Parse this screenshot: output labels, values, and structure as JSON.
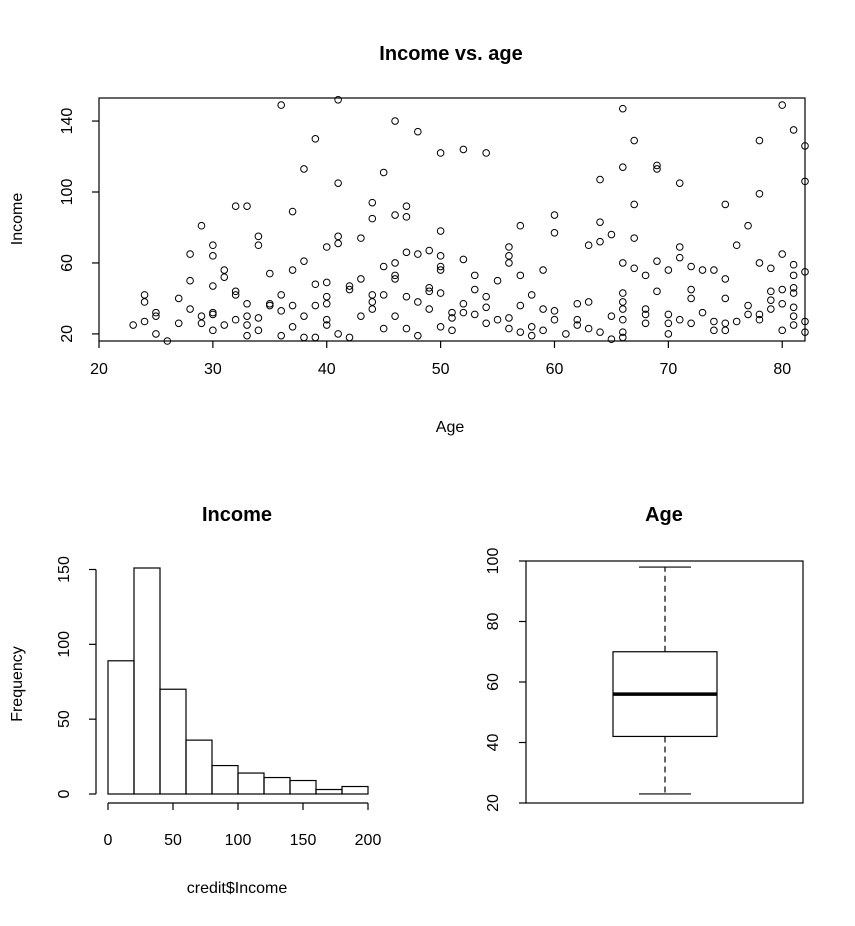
{
  "chart_data": [
    {
      "type": "scatter",
      "title": "Income vs. age",
      "xlabel": "Age",
      "ylabel": "Income",
      "xlim": [
        20,
        82
      ],
      "ylim": [
        16,
        153
      ],
      "xticks": [
        20,
        30,
        40,
        50,
        60,
        70,
        80
      ],
      "yticks": [
        20,
        60,
        100,
        140
      ],
      "marker": "open-circle",
      "grid": false,
      "points": [
        [
          23,
          25
        ],
        [
          24,
          42
        ],
        [
          24,
          38
        ],
        [
          24,
          27
        ],
        [
          25,
          32
        ],
        [
          25,
          30
        ],
        [
          25,
          20
        ],
        [
          26,
          16
        ],
        [
          27,
          40
        ],
        [
          27,
          26
        ],
        [
          28,
          65
        ],
        [
          28,
          50
        ],
        [
          28,
          34
        ],
        [
          29,
          81
        ],
        [
          29,
          30
        ],
        [
          29,
          26
        ],
        [
          30,
          70
        ],
        [
          30,
          64
        ],
        [
          30,
          47
        ],
        [
          30,
          32
        ],
        [
          30,
          31
        ],
        [
          30,
          22
        ],
        [
          31,
          56
        ],
        [
          31,
          52
        ],
        [
          31,
          25
        ],
        [
          32,
          92
        ],
        [
          32,
          44
        ],
        [
          32,
          42
        ],
        [
          32,
          28
        ],
        [
          33,
          92
        ],
        [
          33,
          37
        ],
        [
          33,
          30
        ],
        [
          33,
          25
        ],
        [
          33,
          19
        ],
        [
          34,
          75
        ],
        [
          34,
          70
        ],
        [
          34,
          29
        ],
        [
          34,
          22
        ],
        [
          35,
          54
        ],
        [
          35,
          37
        ],
        [
          35,
          36
        ],
        [
          36,
          149
        ],
        [
          36,
          42
        ],
        [
          36,
          33
        ],
        [
          36,
          19
        ],
        [
          37,
          89
        ],
        [
          37,
          56
        ],
        [
          37,
          36
        ],
        [
          37,
          24
        ],
        [
          38,
          113
        ],
        [
          38,
          61
        ],
        [
          38,
          30
        ],
        [
          38,
          18
        ],
        [
          39,
          130
        ],
        [
          39,
          48
        ],
        [
          39,
          36
        ],
        [
          39,
          18
        ],
        [
          40,
          69
        ],
        [
          40,
          49
        ],
        [
          40,
          41
        ],
        [
          40,
          37
        ],
        [
          40,
          28
        ],
        [
          40,
          25
        ],
        [
          41,
          152
        ],
        [
          41,
          105
        ],
        [
          41,
          75
        ],
        [
          41,
          71
        ],
        [
          41,
          20
        ],
        [
          42,
          47
        ],
        [
          42,
          45
        ],
        [
          42,
          18
        ],
        [
          43,
          74
        ],
        [
          43,
          51
        ],
        [
          43,
          30
        ],
        [
          44,
          94
        ],
        [
          44,
          85
        ],
        [
          44,
          42
        ],
        [
          44,
          38
        ],
        [
          44,
          34
        ],
        [
          45,
          111
        ],
        [
          45,
          58
        ],
        [
          45,
          42
        ],
        [
          45,
          23
        ],
        [
          46,
          140
        ],
        [
          46,
          87
        ],
        [
          46,
          60
        ],
        [
          46,
          53
        ],
        [
          46,
          51
        ],
        [
          46,
          30
        ],
        [
          47,
          92
        ],
        [
          47,
          86
        ],
        [
          47,
          66
        ],
        [
          47,
          41
        ],
        [
          47,
          23
        ],
        [
          48,
          134
        ],
        [
          48,
          65
        ],
        [
          48,
          38
        ],
        [
          48,
          19
        ],
        [
          49,
          67
        ],
        [
          49,
          46
        ],
        [
          49,
          44
        ],
        [
          49,
          34
        ],
        [
          50,
          122
        ],
        [
          50,
          78
        ],
        [
          50,
          64
        ],
        [
          50,
          58
        ],
        [
          50,
          56
        ],
        [
          50,
          43
        ],
        [
          50,
          24
        ],
        [
          51,
          32
        ],
        [
          51,
          29
        ],
        [
          51,
          22
        ],
        [
          52,
          124
        ],
        [
          52,
          62
        ],
        [
          52,
          37
        ],
        [
          52,
          32
        ],
        [
          53,
          53
        ],
        [
          53,
          45
        ],
        [
          53,
          31
        ],
        [
          54,
          122
        ],
        [
          54,
          41
        ],
        [
          54,
          35
        ],
        [
          54,
          26
        ],
        [
          55,
          50
        ],
        [
          55,
          28
        ],
        [
          56,
          69
        ],
        [
          56,
          64
        ],
        [
          56,
          60
        ],
        [
          56,
          29
        ],
        [
          56,
          23
        ],
        [
          57,
          81
        ],
        [
          57,
          53
        ],
        [
          57,
          36
        ],
        [
          57,
          21
        ],
        [
          58,
          42
        ],
        [
          58,
          24
        ],
        [
          58,
          19
        ],
        [
          59,
          56
        ],
        [
          59,
          34
        ],
        [
          59,
          22
        ],
        [
          60,
          87
        ],
        [
          60,
          77
        ],
        [
          60,
          33
        ],
        [
          60,
          28
        ],
        [
          61,
          20
        ],
        [
          62,
          37
        ],
        [
          62,
          28
        ],
        [
          62,
          25
        ],
        [
          63,
          70
        ],
        [
          63,
          38
        ],
        [
          63,
          23
        ],
        [
          64,
          107
        ],
        [
          64,
          83
        ],
        [
          64,
          72
        ],
        [
          64,
          21
        ],
        [
          65,
          76
        ],
        [
          65,
          30
        ],
        [
          65,
          17
        ],
        [
          66,
          147
        ],
        [
          66,
          114
        ],
        [
          66,
          60
        ],
        [
          66,
          43
        ],
        [
          66,
          38
        ],
        [
          66,
          34
        ],
        [
          66,
          28
        ],
        [
          66,
          21
        ],
        [
          66,
          18
        ],
        [
          67,
          129
        ],
        [
          67,
          93
        ],
        [
          67,
          74
        ],
        [
          67,
          57
        ],
        [
          68,
          53
        ],
        [
          68,
          34
        ],
        [
          68,
          31
        ],
        [
          68,
          26
        ],
        [
          69,
          115
        ],
        [
          69,
          113
        ],
        [
          69,
          61
        ],
        [
          69,
          44
        ],
        [
          70,
          56
        ],
        [
          70,
          31
        ],
        [
          70,
          26
        ],
        [
          70,
          20
        ],
        [
          71,
          105
        ],
        [
          71,
          69
        ],
        [
          71,
          63
        ],
        [
          71,
          28
        ],
        [
          72,
          58
        ],
        [
          72,
          45
        ],
        [
          72,
          40
        ],
        [
          72,
          26
        ],
        [
          73,
          56
        ],
        [
          73,
          32
        ],
        [
          74,
          56
        ],
        [
          74,
          27
        ],
        [
          74,
          22
        ],
        [
          75,
          93
        ],
        [
          75,
          51
        ],
        [
          75,
          40
        ],
        [
          75,
          26
        ],
        [
          75,
          22
        ],
        [
          76,
          70
        ],
        [
          76,
          27
        ],
        [
          77,
          81
        ],
        [
          77,
          36
        ],
        [
          77,
          31
        ],
        [
          78,
          129
        ],
        [
          78,
          99
        ],
        [
          78,
          60
        ],
        [
          78,
          31
        ],
        [
          78,
          28
        ],
        [
          79,
          57
        ],
        [
          79,
          44
        ],
        [
          79,
          39
        ],
        [
          79,
          34
        ],
        [
          80,
          149
        ],
        [
          80,
          65
        ],
        [
          80,
          45
        ],
        [
          80,
          37
        ],
        [
          80,
          22
        ],
        [
          81,
          135
        ],
        [
          81,
          59
        ],
        [
          81,
          53
        ],
        [
          81,
          46
        ],
        [
          81,
          43
        ],
        [
          81,
          35
        ],
        [
          81,
          30
        ],
        [
          81,
          25
        ],
        [
          82,
          126
        ],
        [
          82,
          106
        ],
        [
          82,
          55
        ],
        [
          82,
          27
        ],
        [
          82,
          21
        ]
      ]
    },
    {
      "type": "bar",
      "subtype": "histogram",
      "title": "Income",
      "xlabel": "credit$Income",
      "ylabel": "Frequency",
      "bins": [
        [
          0,
          20
        ],
        [
          20,
          40
        ],
        [
          40,
          60
        ],
        [
          60,
          80
        ],
        [
          80,
          100
        ],
        [
          100,
          120
        ],
        [
          120,
          140
        ],
        [
          140,
          160
        ],
        [
          160,
          180
        ],
        [
          180,
          200
        ]
      ],
      "values": [
        89,
        151,
        70,
        36,
        19,
        14,
        11,
        9,
        3,
        5
      ],
      "xticks": [
        0,
        50,
        100,
        150,
        200
      ],
      "yticks": [
        0,
        50,
        100,
        150
      ],
      "xlim": [
        0,
        200
      ],
      "ylim": [
        0,
        151
      ]
    },
    {
      "type": "boxplot",
      "title": "Age",
      "ylim": [
        20,
        100
      ],
      "yticks": [
        20,
        40,
        60,
        80,
        100
      ],
      "whisker_low": 23,
      "q1": 42,
      "median": 56,
      "q3": 70,
      "whisker_high": 98
    }
  ]
}
